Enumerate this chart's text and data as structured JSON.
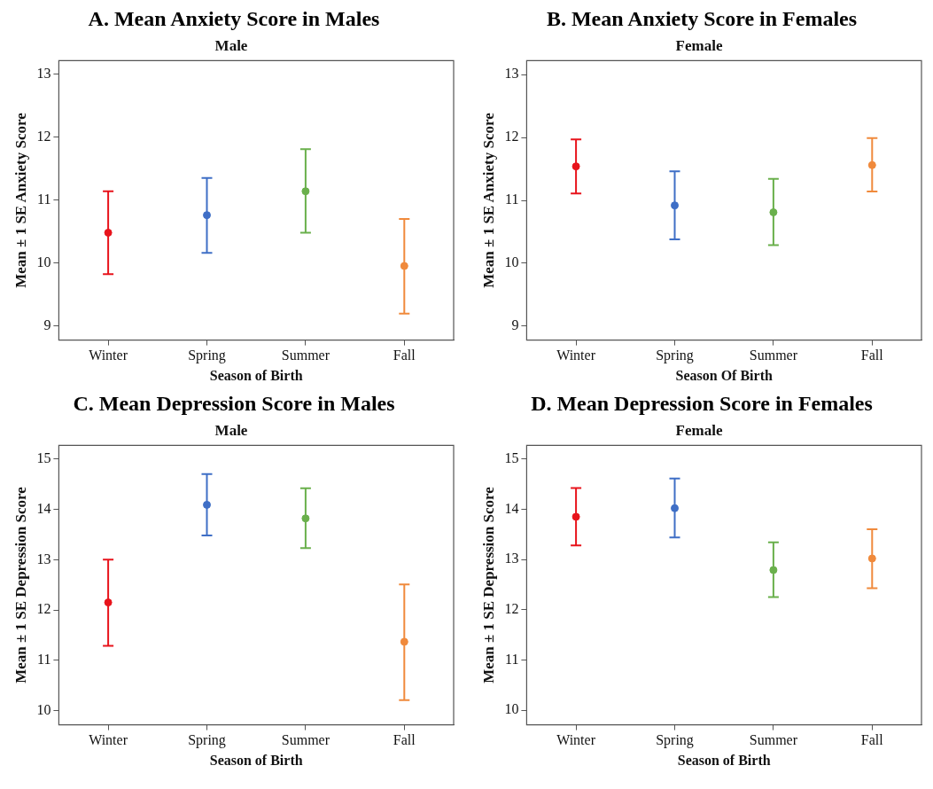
{
  "chart_data": [
    {
      "type": "scatter",
      "title": "A.  Mean Anxiety Score in Males",
      "subtitle": "Male",
      "xlabel": "Season of Birth",
      "ylabel": "Mean ± 1 SE Anxiety Score",
      "categories": [
        "Winter",
        "Spring",
        "Summer",
        "Fall"
      ],
      "values": [
        10.48,
        10.76,
        11.14,
        9.95
      ],
      "colors": [
        "#e8141c",
        "#3f6fc6",
        "#6ab04c",
        "#f08a3c"
      ],
      "errors": [
        [
          9.82,
          11.14
        ],
        [
          10.16,
          11.35
        ],
        [
          10.48,
          11.81
        ],
        [
          9.19,
          10.7
        ]
      ],
      "ylim": [
        8.77,
        13.22
      ],
      "yticks": [
        9,
        10,
        11,
        12,
        13
      ],
      "marker": "circle",
      "grid": false,
      "legend": false
    },
    {
      "type": "scatter",
      "title": "B.  Mean Anxiety Score in Females",
      "subtitle": "Female",
      "xlabel": "Season Of Birth",
      "ylabel": "Mean ± 1 SE Anxiety Score",
      "categories": [
        "Winter",
        "Spring",
        "Summer",
        "Fall"
      ],
      "values": [
        11.54,
        10.92,
        10.81,
        11.56
      ],
      "colors": [
        "#e8141c",
        "#3f6fc6",
        "#6ab04c",
        "#f08a3c"
      ],
      "errors": [
        [
          11.11,
          11.97
        ],
        [
          10.38,
          11.46
        ],
        [
          10.29,
          11.34
        ],
        [
          11.14,
          11.99
        ]
      ],
      "ylim": [
        8.78,
        13.22
      ],
      "yticks": [
        9,
        10,
        11,
        12,
        13
      ],
      "marker": "circle",
      "grid": false,
      "legend": false
    },
    {
      "type": "scatter",
      "title": "C.  Mean Depression Score in Males",
      "subtitle": "Male",
      "xlabel": "Season of Birth",
      "ylabel": "Mean ± 1 SE Depression Score",
      "categories": [
        "Winter",
        "Spring",
        "Summer",
        "Fall"
      ],
      "values": [
        12.15,
        14.09,
        13.82,
        11.37
      ],
      "colors": [
        "#e8141c",
        "#3f6fc6",
        "#6ab04c",
        "#f08a3c"
      ],
      "errors": [
        [
          11.29,
          13.0
        ],
        [
          13.48,
          14.7
        ],
        [
          13.23,
          14.42
        ],
        [
          10.21,
          12.51
        ]
      ],
      "ylim": [
        9.72,
        15.27
      ],
      "yticks": [
        10,
        11,
        12,
        13,
        14,
        15
      ],
      "marker": "circle",
      "grid": false,
      "legend": false
    },
    {
      "type": "scatter",
      "title": "D. Mean Depression Score in Females",
      "subtitle": "Female",
      "xlabel": "Season of Birth",
      "ylabel": "Mean ± 1 SE Depression Score",
      "categories": [
        "Winter",
        "Spring",
        "Summer",
        "Fall"
      ],
      "values": [
        13.85,
        14.02,
        12.79,
        13.02
      ],
      "colors": [
        "#e8141c",
        "#3f6fc6",
        "#6ab04c",
        "#f08a3c"
      ],
      "errors": [
        [
          13.28,
          14.42
        ],
        [
          13.44,
          14.61
        ],
        [
          12.25,
          13.34
        ],
        [
          12.43,
          13.6
        ]
      ],
      "ylim": [
        9.71,
        15.27
      ],
      "yticks": [
        10,
        11,
        12,
        13,
        14,
        15
      ],
      "marker": "circle",
      "grid": false,
      "legend": false
    }
  ]
}
